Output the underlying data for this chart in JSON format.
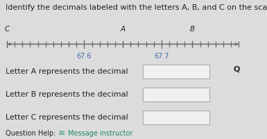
{
  "title": "Identify the decimals labeled with the letters A, B, and C on the scale below.",
  "scale_min": 67.5,
  "scale_max": 67.8,
  "major_ticks": [
    67.6,
    67.7
  ],
  "point_A": 67.65,
  "point_B": 67.74,
  "point_C": 67.5,
  "label_A": "A",
  "label_B": "B",
  "label_C": "C",
  "line_color": "#666666",
  "label_color": "#222222",
  "tick_label_color": "#4466aa",
  "bg_color": "#dcdcdc",
  "answer_label_A": "Letter A represents the decimal",
  "answer_label_B": "Letter B represents the decimal",
  "answer_label_C": "Letter C represents the decimal",
  "question_help": "Question Help:",
  "message_instructor": " Message instructor",
  "font_size_title": 8.0,
  "font_size_abc": 7.5,
  "font_size_tick_labels": 7.0,
  "font_size_answer": 8.0,
  "font_size_help": 7.0,
  "box_color": "#f0f0f0",
  "border_color": "#aaaaaa",
  "help_color": "#228866"
}
